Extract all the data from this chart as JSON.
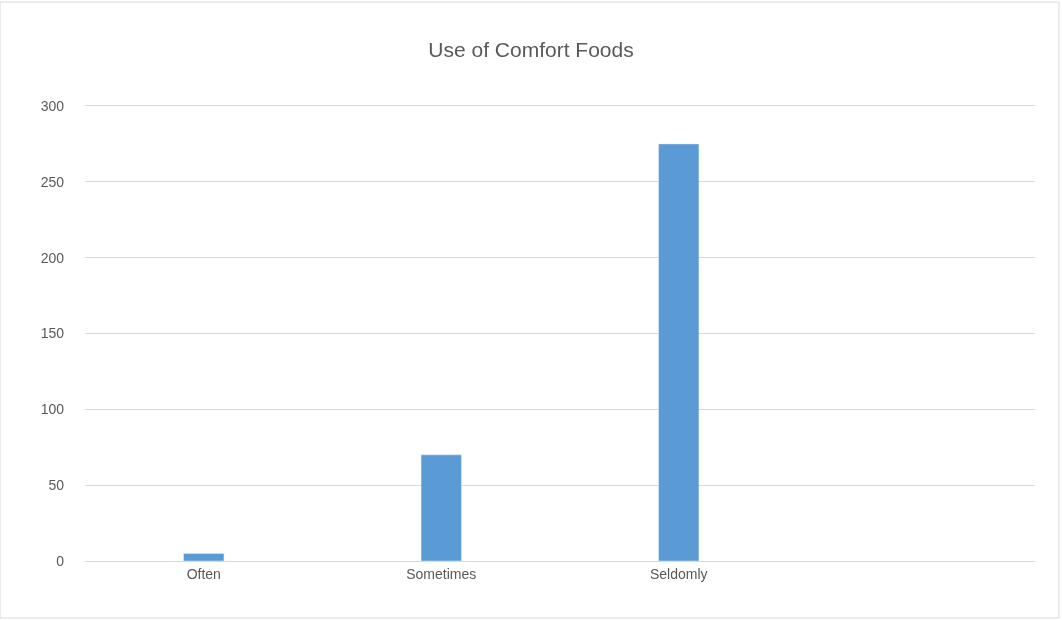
{
  "chart_data": {
    "type": "bar",
    "title": "Use of Comfort Foods",
    "categories": [
      "Often",
      "Sometimes",
      "Seldomly",
      null
    ],
    "values": [
      5,
      70,
      275,
      null
    ],
    "color": "#5b9bd5",
    "ylim": [
      0,
      300
    ],
    "yticks": [
      0,
      50,
      100,
      150,
      200,
      250,
      300
    ],
    "grid": "y"
  }
}
